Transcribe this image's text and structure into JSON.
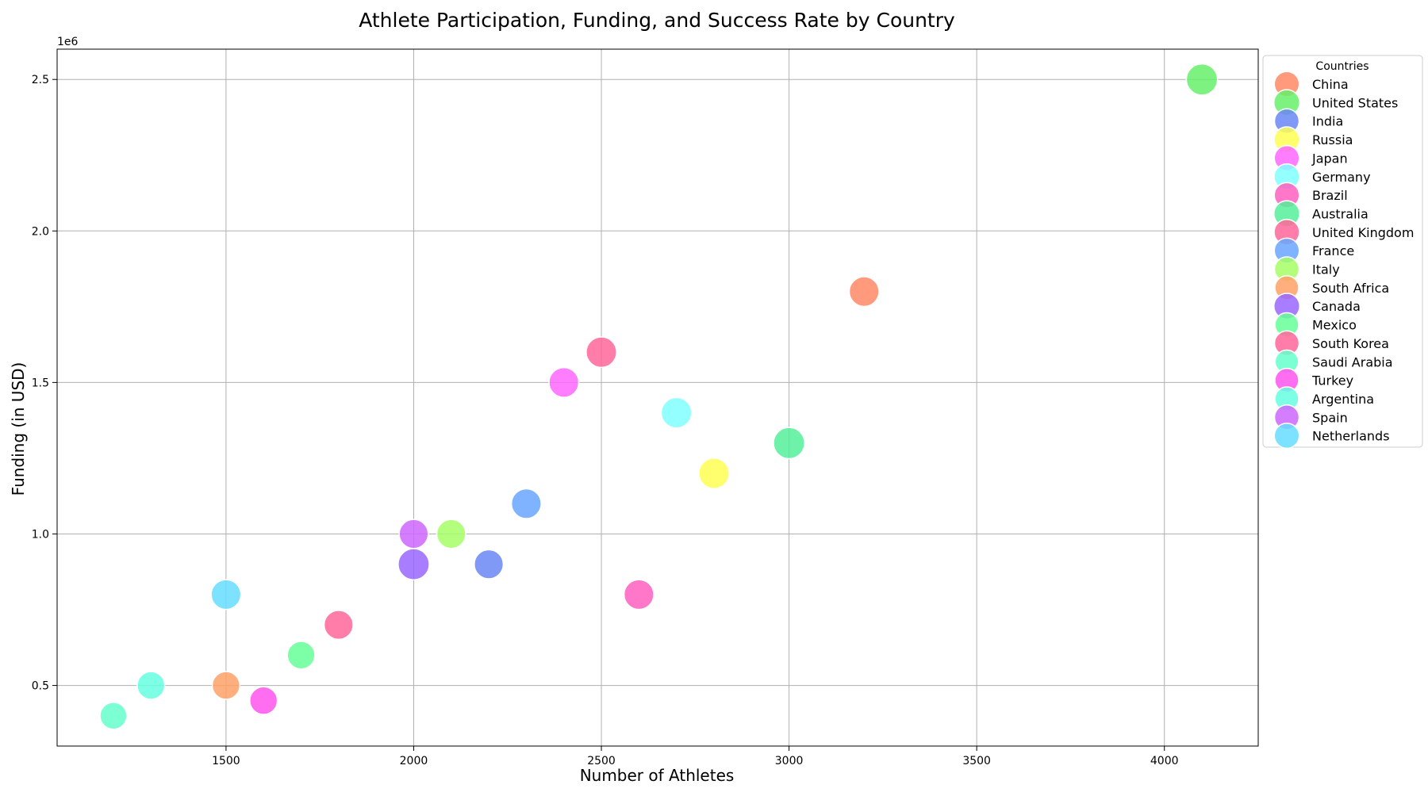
{
  "chart_data": {
    "type": "scatter",
    "title": "Athlete Participation, Funding, and Success Rate by Country",
    "xlabel": "Number of Athletes",
    "ylabel": "Funding (in USD)",
    "y_offset_label": "1e6",
    "xlim": [
      1050,
      4250
    ],
    "ylim": [
      0.3,
      2.6
    ],
    "x_ticks": [
      1500,
      2000,
      2500,
      3000,
      3500,
      4000
    ],
    "y_ticks": [
      0.5,
      1.0,
      1.5,
      2.0,
      2.5
    ],
    "x_tick_labels": [
      "1500",
      "2000",
      "2500",
      "3000",
      "3500",
      "4000"
    ],
    "y_tick_labels": [
      "0.5",
      "1.0",
      "1.5",
      "2.0",
      "2.5"
    ],
    "grid": true,
    "legend": {
      "title": "Countries",
      "placement": "outside-right-top"
    },
    "series": [
      {
        "name": "China",
        "x": 3200,
        "y": 1.8,
        "size": 0.75,
        "color": "#ff8a65"
      },
      {
        "name": "United States",
        "x": 4100,
        "y": 2.5,
        "size": 0.85,
        "color": "#66f06a"
      },
      {
        "name": "India",
        "x": 2200,
        "y": 0.9,
        "size": 0.7,
        "color": "#6b87f5"
      },
      {
        "name": "Russia",
        "x": 2800,
        "y": 1.2,
        "size": 0.8,
        "color": "#ffff55"
      },
      {
        "name": "Japan",
        "x": 2400,
        "y": 1.5,
        "size": 0.75,
        "color": "#ff66ff"
      },
      {
        "name": "Germany",
        "x": 2700,
        "y": 1.4,
        "size": 0.8,
        "color": "#80ffff"
      },
      {
        "name": "Brazil",
        "x": 2600,
        "y": 0.8,
        "size": 0.75,
        "color": "#ff5fc0"
      },
      {
        "name": "Australia",
        "x": 3000,
        "y": 1.3,
        "size": 0.85,
        "color": "#55ee99"
      },
      {
        "name": "United Kingdom",
        "x": 2500,
        "y": 1.6,
        "size": 0.8,
        "color": "#ff6699"
      },
      {
        "name": "France",
        "x": 2300,
        "y": 1.1,
        "size": 0.75,
        "color": "#6aa6ff"
      },
      {
        "name": "Italy",
        "x": 2100,
        "y": 1.0,
        "size": 0.7,
        "color": "#a6ff66"
      },
      {
        "name": "South Africa",
        "x": 1500,
        "y": 0.5,
        "size": 0.6,
        "color": "#ffa066"
      },
      {
        "name": "Canada",
        "x": 2000,
        "y": 0.9,
        "size": 0.85,
        "color": "#9966ff"
      },
      {
        "name": "Mexico",
        "x": 1700,
        "y": 0.6,
        "size": 0.6,
        "color": "#66ff99"
      },
      {
        "name": "South Korea",
        "x": 1800,
        "y": 0.7,
        "size": 0.7,
        "color": "#ff6699"
      },
      {
        "name": "Saudi Arabia",
        "x": 1200,
        "y": 0.4,
        "size": 0.55,
        "color": "#66ffcc"
      },
      {
        "name": "Turkey",
        "x": 1600,
        "y": 0.45,
        "size": 0.6,
        "color": "#ff55ee"
      },
      {
        "name": "Argentina",
        "x": 1300,
        "y": 0.5,
        "size": 0.6,
        "color": "#66ffe0"
      },
      {
        "name": "Spain",
        "x": 2000,
        "y": 1.0,
        "size": 0.7,
        "color": "#cc66ff"
      },
      {
        "name": "Netherlands",
        "x": 1500,
        "y": 0.8,
        "size": 0.75,
        "color": "#66ddff"
      }
    ]
  }
}
